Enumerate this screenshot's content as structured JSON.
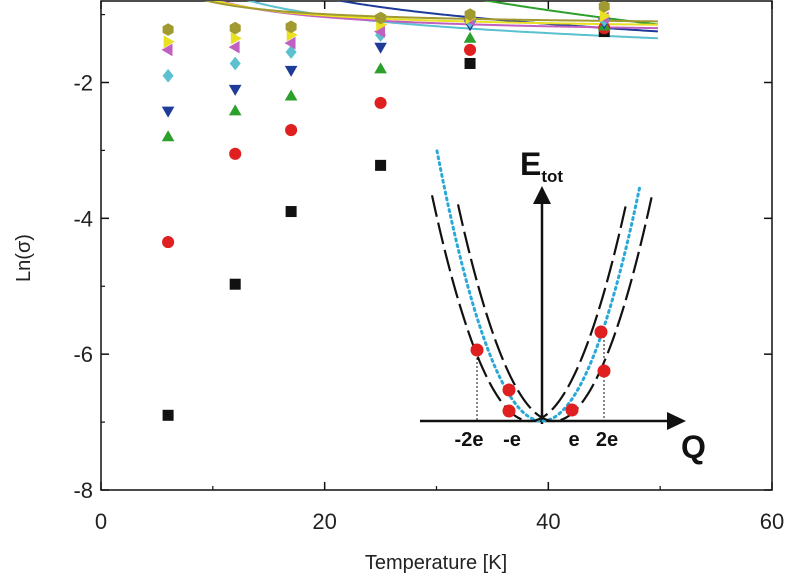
{
  "chart_data": {
    "type": "scatter",
    "xlabel": "Temperature [K]",
    "ylabel": "Ln(σ)",
    "xlim": [
      0,
      60
    ],
    "ylim": [
      -8,
      -0.8
    ],
    "x_ticks": [
      0,
      20,
      40,
      60
    ],
    "y_ticks": [
      -8,
      -6,
      -4,
      -2
    ],
    "x_tick_labels": [
      "0",
      "20",
      "40",
      "60"
    ],
    "y_tick_labels": [
      "-8",
      "-6",
      "-4",
      "-2"
    ],
    "series": [
      {
        "name": "series-1",
        "marker": "square",
        "color": "#111111",
        "points": [
          [
            6,
            -6.9
          ],
          [
            12,
            -4.97
          ],
          [
            17,
            -3.9
          ],
          [
            25,
            -3.22
          ],
          [
            33,
            -1.72
          ],
          [
            45,
            -1.25
          ]
        ],
        "fit": {
          "a": -0.02,
          "b": -1.295,
          "c": 0.02
        }
      },
      {
        "name": "series-2",
        "marker": "circle",
        "color": "#e02020",
        "points": [
          [
            6,
            -4.35
          ],
          [
            12,
            -3.05
          ],
          [
            17,
            -2.7
          ],
          [
            25,
            -2.3
          ],
          [
            33,
            -1.52
          ],
          [
            45,
            -1.2
          ]
        ],
        "fit": {
          "a": -0.7,
          "b": -0.778,
          "c": 0.016
        }
      },
      {
        "name": "series-3",
        "marker": "triangle-up",
        "color": "#2ca02c",
        "points": [
          [
            6,
            -2.8
          ],
          [
            12,
            -2.42
          ],
          [
            17,
            -2.2
          ],
          [
            25,
            -1.8
          ],
          [
            33,
            -1.35
          ],
          [
            45,
            -1.17
          ]
        ],
        "fit": {
          "a": -1.1,
          "b": -0.378,
          "c": 0.012
        }
      },
      {
        "name": "series-4",
        "marker": "triangle-down",
        "color": "#1f3b99",
        "points": [
          [
            6,
            -2.42
          ],
          [
            12,
            -2.1
          ],
          [
            17,
            -1.82
          ],
          [
            25,
            -1.48
          ],
          [
            33,
            -1.15
          ],
          [
            45,
            -1.12
          ]
        ],
        "fit": {
          "a": -1.2,
          "b": -0.211,
          "c": 0.006
        }
      },
      {
        "name": "series-5",
        "marker": "diamond",
        "color": "#5bc0d0",
        "points": [
          [
            6,
            -1.9
          ],
          [
            12,
            -1.72
          ],
          [
            17,
            -1.55
          ],
          [
            25,
            -1.3
          ],
          [
            33,
            -1.1
          ],
          [
            45,
            -1.08
          ]
        ],
        "fit": {
          "a": -1.3,
          "b": -0.147,
          "c": 0.004
        }
      },
      {
        "name": "series-6",
        "marker": "triangle-left",
        "color": "#c060c0",
        "points": [
          [
            6,
            -1.52
          ],
          [
            12,
            -1.48
          ],
          [
            17,
            -1.42
          ],
          [
            25,
            -1.25
          ],
          [
            33,
            -1.08
          ],
          [
            45,
            -1.05
          ]
        ],
        "fit": {
          "a": -1.15,
          "b": -0.109,
          "c": 0.0
        }
      },
      {
        "name": "series-7",
        "marker": "triangle-right",
        "color": "#e8e020",
        "points": [
          [
            6,
            -1.4
          ],
          [
            12,
            -1.35
          ],
          [
            17,
            -1.3
          ],
          [
            25,
            -1.15
          ],
          [
            33,
            -1.05
          ],
          [
            45,
            -1.02
          ]
        ],
        "fit": {
          "a": -1.1,
          "b": -0.091,
          "c": 0.0
        }
      },
      {
        "name": "series-8",
        "marker": "hexagon",
        "color": "#a09a30",
        "points": [
          [
            6,
            -1.22
          ],
          [
            12,
            -1.2
          ],
          [
            17,
            -1.18
          ],
          [
            25,
            -1.05
          ],
          [
            33,
            -1.0
          ],
          [
            45,
            -0.88
          ]
        ],
        "fit": {
          "a": -1.05,
          "b": -0.071,
          "c": 0.0
        }
      }
    ],
    "inset": {
      "y_axis_label": "E",
      "y_axis_subscript": "tot",
      "x_axis_label": "Q",
      "tick_labels": [
        "-2e",
        "-e",
        "e",
        "2e"
      ],
      "marker_color": "#e02020",
      "dotted_curve_color": "#2aa8d8"
    }
  }
}
